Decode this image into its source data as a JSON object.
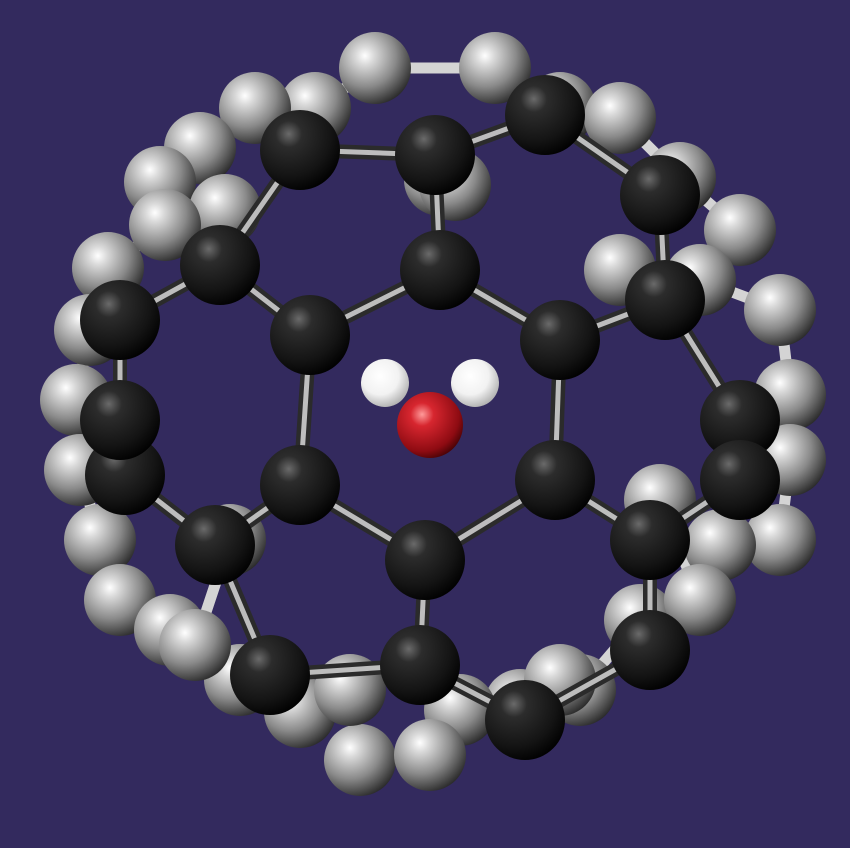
{
  "scene": {
    "subject": "fullerene-cage-with-encapsulated-water",
    "colors": {
      "background": "#332a5e",
      "bond": "#cfcfcf",
      "carbon_light": "#e8e8e8",
      "carbon_mid": "#7d7d7d",
      "carbon_dark": "#1a1a1a",
      "oxygen": "#c1121c",
      "hydrogen": "#ffffff"
    }
  }
}
